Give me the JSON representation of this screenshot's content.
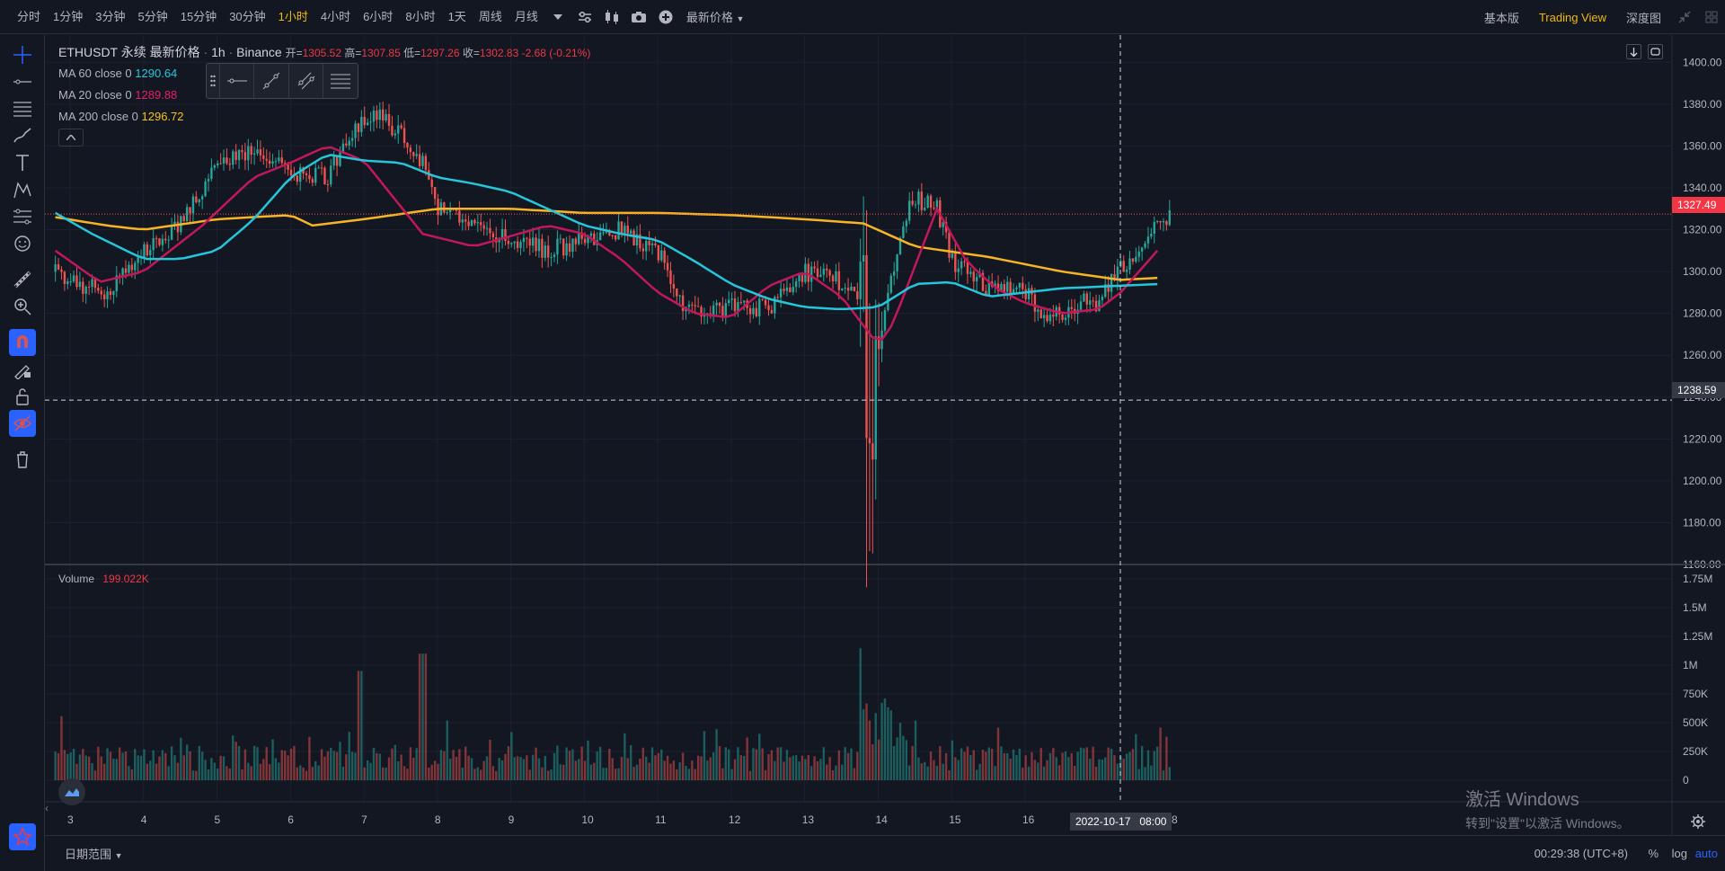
{
  "toolbar": {
    "intervals": [
      "分时",
      "1分钟",
      "3分钟",
      "5分钟",
      "15分钟",
      "30分钟",
      "1小时",
      "4小时",
      "6小时",
      "8小时",
      "1天",
      "周线",
      "月线"
    ],
    "active_interval": "1小时",
    "price_type": "最新价格",
    "views": [
      "基本版",
      "Trading View",
      "深度图"
    ],
    "active_view": "Trading View",
    "icons": [
      "chevron-down-icon",
      "settings-sliders-icon",
      "candles-icon",
      "camera-icon",
      "add-indicator-icon"
    ]
  },
  "legend": {
    "symbol": "ETHUSDT 永续 最新价格",
    "interval": "1h",
    "exchange": "Binance",
    "open_label": "开=",
    "open": "1305.52",
    "high_label": "高=",
    "high": "1307.85",
    "low_label": "低=",
    "low": "1297.26",
    "close_label": "收=",
    "close": "1302.83",
    "change": "-2.68 (-0.21%)",
    "ma60_label": "MA 60 close 0",
    "ma60": "1290.64",
    "ma20_label": "MA 20 close 0",
    "ma20": "1289.88",
    "ma200_label": "MA 200 close 0",
    "ma200": "1296.72",
    "volume_label": "Volume",
    "volume": "199.022K"
  },
  "price_axis": {
    "ticks": [
      "1400.00",
      "1380.00",
      "1360.00",
      "1340.00",
      "1320.00",
      "1300.00",
      "1280.00",
      "1260.00",
      "1240.00",
      "1220.00",
      "1200.00",
      "1180.00",
      "1160.00"
    ],
    "last_price_tag": "1327.49",
    "crosshair_tag": "1238.59",
    "last_price_color": "#f23645"
  },
  "volume_axis": {
    "ticks": [
      "1.75M",
      "1.5M",
      "1.25M",
      "1M",
      "750K",
      "500K",
      "250K",
      "0"
    ]
  },
  "time_axis": {
    "labels": [
      "3",
      "4",
      "5",
      "6",
      "7",
      "8",
      "9",
      "10",
      "11",
      "12",
      "13",
      "14",
      "15",
      "16"
    ],
    "crosshair_tag": "2022-10-17   08:00",
    "partial_label": "8"
  },
  "bottom": {
    "date_range": "日期范围",
    "clock": "00:29:38 (UTC+8)",
    "percent": "%",
    "log": "log",
    "auto": "auto"
  },
  "watermark": {
    "line1": "激活 Windows",
    "line2": "转到\"设置\"以激活 Windows。"
  },
  "colors": {
    "up": "#26a69a",
    "down": "#ef5350",
    "ma60": "#26c6da",
    "ma20": "#c2185b",
    "ma200": "#f7b526",
    "accent": "#f0b90b",
    "highlight": "#2962ff"
  },
  "chart_data": {
    "type": "candlestick",
    "symbol": "ETHUSDT",
    "interval": "1h",
    "y_range": [
      1155,
      1410
    ],
    "volume_range": [
      0,
      1800000
    ],
    "day_labels": [
      "3",
      "4",
      "5",
      "6",
      "7",
      "8",
      "9",
      "10",
      "11",
      "12",
      "13",
      "14",
      "15",
      "16"
    ],
    "close_path_days": [
      2.8,
      3.0,
      3.5,
      4.0,
      4.5,
      5.0,
      5.5,
      6.0,
      6.5,
      6.9,
      7.2,
      7.5,
      7.8,
      8.0,
      8.5,
      9.0,
      9.5,
      10.0,
      10.5,
      11.0,
      11.3,
      11.6,
      12.0,
      12.5,
      13.0,
      13.5,
      13.8,
      13.9,
      14.0,
      14.3,
      14.5,
      14.8,
      15.0,
      15.5,
      16.0,
      16.3,
      16.8,
      17.0,
      17.2,
      17.5,
      17.8,
      18.0
    ],
    "close_path": [
      1300,
      1295,
      1290,
      1310,
      1322,
      1350,
      1360,
      1348,
      1345,
      1370,
      1375,
      1365,
      1352,
      1330,
      1322,
      1315,
      1310,
      1315,
      1320,
      1310,
      1285,
      1278,
      1285,
      1282,
      1300,
      1295,
      1280,
      1212,
      1260,
      1320,
      1335,
      1330,
      1305,
      1292,
      1290,
      1278,
      1285,
      1282,
      1300,
      1305,
      1325,
      1327
    ],
    "ma60_path": [
      1328,
      1318,
      1306,
      1306,
      1310,
      1325,
      1345,
      1356,
      1353,
      1352,
      1345,
      1342,
      1338,
      1330,
      1322,
      1318,
      1315,
      1305,
      1294,
      1287,
      1283,
      1282,
      1283,
      1294,
      1295,
      1288,
      1292,
      1294
    ],
    "ma60_days": [
      2.8,
      3.3,
      4.0,
      4.5,
      5.0,
      5.5,
      6.0,
      6.5,
      7.0,
      7.5,
      8.0,
      8.5,
      9.0,
      9.5,
      10.0,
      10.5,
      11.0,
      11.5,
      12.0,
      12.5,
      13.0,
      13.5,
      14.0,
      14.5,
      15.0,
      15.5,
      16.5,
      17.8
    ],
    "ma20_path": [
      1310,
      1295,
      1300,
      1322,
      1345,
      1352,
      1360,
      1353,
      1318,
      1312,
      1322,
      1318,
      1306,
      1290,
      1280,
      1278,
      1293,
      1300,
      1288,
      1265,
      1275,
      1330,
      1305,
      1292,
      1285,
      1280,
      1282,
      1290,
      1310
    ],
    "ma20_days": [
      2.8,
      3.4,
      4.0,
      4.8,
      5.5,
      6.0,
      6.5,
      7.0,
      7.8,
      8.5,
      9.5,
      10.0,
      10.5,
      11.0,
      11.5,
      12.0,
      12.5,
      13.0,
      13.5,
      14.0,
      14.2,
      14.8,
      15.2,
      15.6,
      16.0,
      16.5,
      17.0,
      17.3,
      17.8
    ],
    "ma200_path": [
      1326,
      1322,
      1320,
      1325,
      1327,
      1322,
      1325,
      1330,
      1330,
      1328,
      1328,
      1327,
      1325,
      1323,
      1312,
      1307,
      1300,
      1296,
      1297
    ],
    "ma200_days": [
      2.8,
      3.5,
      4.0,
      5.0,
      6.0,
      6.3,
      7.0,
      8.0,
      9.0,
      10.0,
      11.0,
      12.0,
      13.0,
      13.8,
      14.5,
      15.5,
      16.5,
      17.3,
      17.8
    ]
  }
}
